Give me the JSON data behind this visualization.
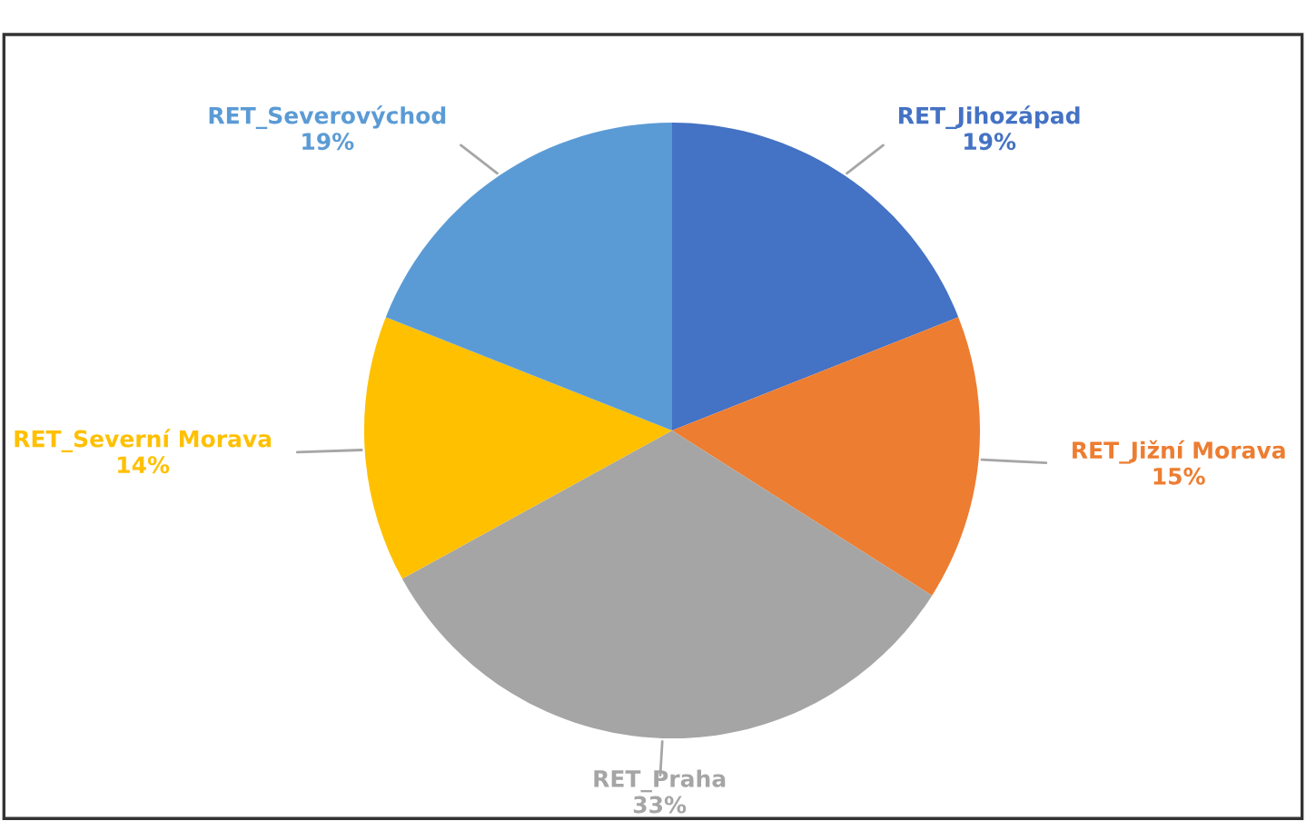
{
  "chart_data": {
    "type": "pie",
    "categories": [
      "RET_Jihozápad",
      "RET_Jižní Morava",
      "RET_Praha",
      "RET_Severní Morava",
      "RET_Severovýchod"
    ],
    "values": [
      19,
      15,
      33,
      14,
      19
    ],
    "value_labels": [
      "19%",
      "15%",
      "33%",
      "14%",
      "19%"
    ],
    "colors": [
      "#4472c4",
      "#ed7d31",
      "#a5a5a5",
      "#ffc000",
      "#5b9bd5"
    ]
  }
}
